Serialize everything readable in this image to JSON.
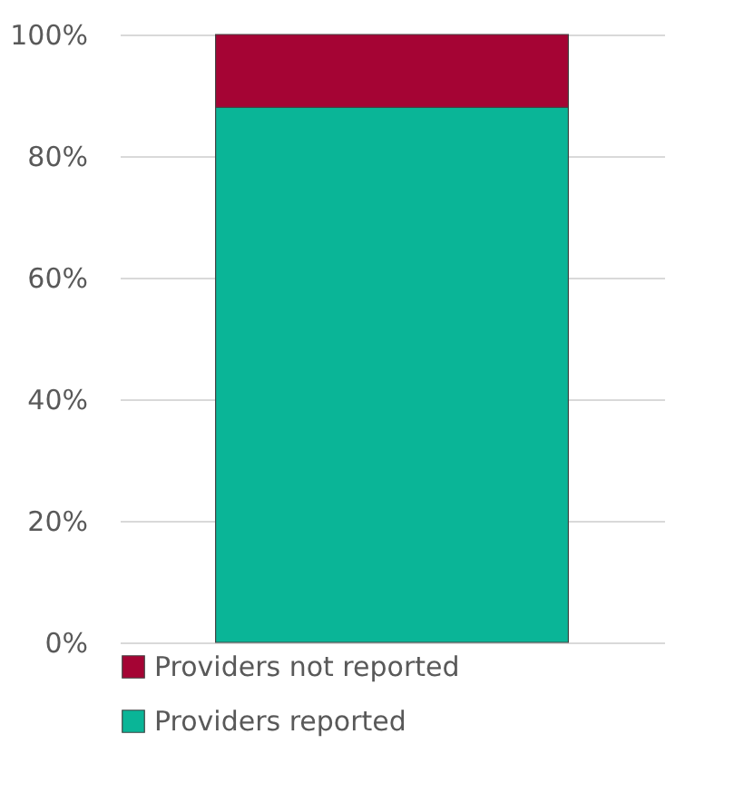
{
  "chart_data": {
    "type": "bar",
    "stacked": true,
    "categories": [
      null
    ],
    "series": [
      {
        "name": "Providers reported",
        "color": "#0ab597",
        "values": [
          88
        ]
      },
      {
        "name": "Providers not reported",
        "color": "#a50434",
        "values": [
          12
        ]
      }
    ],
    "ylim": [
      0,
      100
    ],
    "yticks": [
      {
        "value": 0,
        "label": "0%"
      },
      {
        "value": 20,
        "label": "20%"
      },
      {
        "value": 40,
        "label": "40%"
      },
      {
        "value": 60,
        "label": "60%"
      },
      {
        "value": 80,
        "label": "80%"
      },
      {
        "value": 100,
        "label": "100%"
      }
    ],
    "grid": "y",
    "legend": "bottom",
    "tick_labels": "y"
  }
}
